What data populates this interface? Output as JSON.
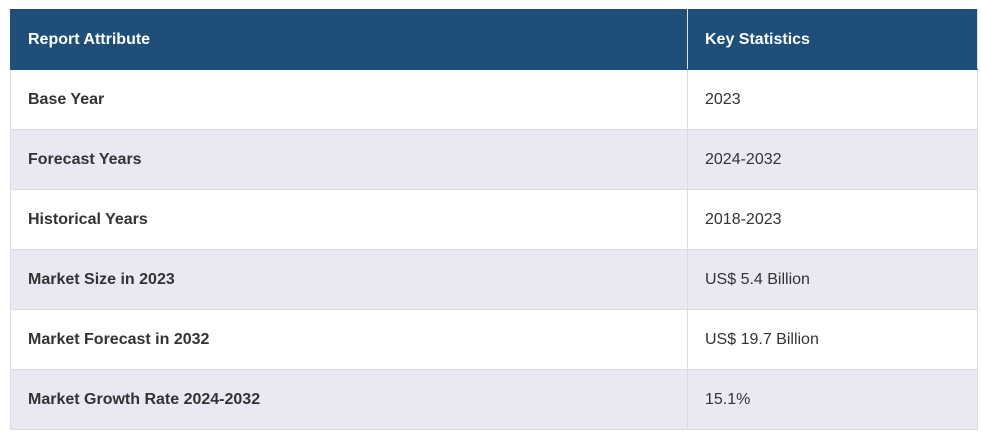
{
  "table": {
    "header": [
      "Report Attribute",
      "Key Statistics"
    ],
    "rows": [
      [
        "Base Year",
        "2023"
      ],
      [
        "Forecast Years",
        "2024-2032"
      ],
      [
        "Historical Years",
        "2018-2023"
      ],
      [
        "Market Size in 2023",
        "US$ 5.4 Billion"
      ],
      [
        "Market Forecast in 2032",
        "US$ 19.7 Billion"
      ],
      [
        "Market Growth Rate 2024-2032",
        "15.1%"
      ]
    ]
  }
}
